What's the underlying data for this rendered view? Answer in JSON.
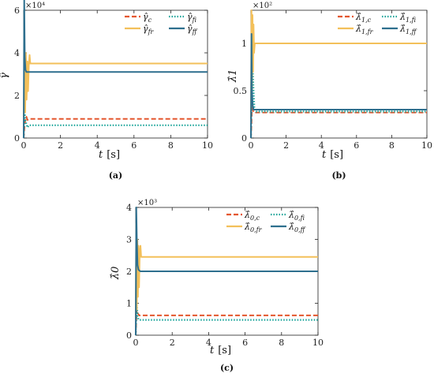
{
  "colors": {
    "c": "#e4572e",
    "fi": "#17a398",
    "fr": "#f3c05a",
    "ff": "#2e6f8e",
    "axis": "#222222"
  },
  "chart_data": [
    {
      "type": "line",
      "caption": "(a)",
      "ylabel": "γ̂",
      "xlabel": "t",
      "xunit": "[s]",
      "multiplier": "×10⁴",
      "xlim": [
        0,
        10
      ],
      "ylim": [
        0,
        6
      ],
      "xticks": [
        "0",
        "2",
        "4",
        "6",
        "8",
        "10"
      ],
      "yticks": [
        "0",
        "2",
        "4",
        "6"
      ],
      "legend_position": "top-right",
      "series": [
        {
          "name": "γ̂c",
          "key": "c",
          "style": "dash",
          "x": [
            0,
            0.05,
            0.1,
            0.15,
            0.2,
            0.3,
            0.4,
            10
          ],
          "y": [
            0,
            0.6,
            0.9,
            1.0,
            0.85,
            0.9,
            0.9,
            0.9
          ]
        },
        {
          "name": "γ̂fi",
          "key": "fi",
          "style": "dot",
          "x": [
            0,
            0.05,
            0.1,
            0.2,
            0.3,
            0.4,
            10
          ],
          "y": [
            0,
            1.2,
            0.8,
            0.5,
            0.6,
            0.6,
            0.6
          ]
        },
        {
          "name": "γ̂fr",
          "key": "fr",
          "style": "solid",
          "x": [
            0,
            0.04,
            0.08,
            0.12,
            0.16,
            0.2,
            0.24,
            0.28,
            0.32,
            0.36,
            0.4,
            10
          ],
          "y": [
            1.0,
            3.8,
            1.2,
            4.0,
            1.8,
            3.6,
            2.2,
            3.4,
            3.9,
            3.5,
            3.5,
            3.5
          ]
        },
        {
          "name": "γ̂ff",
          "key": "ff",
          "style": "solid",
          "x": [
            0,
            0.03,
            0.06,
            0.1,
            0.15,
            0.2,
            0.25,
            0.35,
            10
          ],
          "y": [
            0,
            6.5,
            3.8,
            3.2,
            3.1,
            3.1,
            3.1,
            3.1,
            3.1
          ]
        }
      ],
      "legend": [
        {
          "base": "γ̂",
          "sub": "c",
          "key": "c",
          "style": "dash"
        },
        {
          "base": "γ̂",
          "sub": "fi",
          "key": "fi",
          "style": "dot"
        },
        {
          "base": "γ̂",
          "sub": "fr",
          "key": "fr",
          "style": "solid"
        },
        {
          "base": "γ̂",
          "sub": "ff",
          "key": "ff",
          "style": "solid"
        }
      ]
    },
    {
      "type": "line",
      "caption": "(b)",
      "ylabel": "λ̂1",
      "xlabel": "t",
      "xunit": "[s]",
      "multiplier": "×10²",
      "xlim": [
        0,
        10
      ],
      "ylim": [
        0,
        1.35
      ],
      "xticks": [
        "0",
        "2",
        "4",
        "6",
        "8",
        "10"
      ],
      "yticks": [
        "0",
        "0.5",
        "1"
      ],
      "legend_position": "top-right",
      "series": [
        {
          "name": "λ̂1,c",
          "key": "c",
          "style": "dash",
          "x": [
            0,
            0.03,
            0.06,
            0.1,
            0.15,
            0.2,
            0.3,
            10
          ],
          "y": [
            0,
            0.15,
            0.35,
            0.3,
            0.27,
            0.27,
            0.27,
            0.27
          ]
        },
        {
          "name": "λ̂1,fi",
          "key": "fi",
          "style": "dot",
          "x": [
            0,
            0.05,
            0.1,
            0.15,
            0.2,
            0.3,
            10
          ],
          "y": [
            0,
            0.55,
            0.75,
            0.5,
            0.3,
            0.28,
            0.28
          ]
        },
        {
          "name": "λ̂1,fr",
          "key": "fr",
          "style": "solid",
          "x": [
            0,
            0.03,
            0.06,
            0.09,
            0.12,
            0.15,
            0.18,
            0.22,
            0.3,
            10
          ],
          "y": [
            0.2,
            1.35,
            0.5,
            1.3,
            0.7,
            1.2,
            0.9,
            1.0,
            1.0,
            1.0
          ]
        },
        {
          "name": "λ̂1,ff",
          "key": "ff",
          "style": "solid",
          "x": [
            0,
            0.03,
            0.06,
            0.1,
            0.15,
            0.25,
            10
          ],
          "y": [
            0,
            1.1,
            0.5,
            0.35,
            0.3,
            0.3,
            0.3
          ]
        }
      ],
      "legend": [
        {
          "base": "λ̂",
          "sub": "1,c",
          "key": "c",
          "style": "dash"
        },
        {
          "base": "λ̂",
          "sub": "1,fi",
          "key": "fi",
          "style": "dot"
        },
        {
          "base": "λ̂",
          "sub": "1,fr",
          "key": "fr",
          "style": "solid"
        },
        {
          "base": "λ̂",
          "sub": "1,ff",
          "key": "ff",
          "style": "solid"
        }
      ]
    },
    {
      "type": "line",
      "caption": "(c)",
      "ylabel": "λ̂0",
      "xlabel": "t",
      "xunit": "[s]",
      "multiplier": "×10³",
      "xlim": [
        0,
        10
      ],
      "ylim": [
        0,
        4
      ],
      "xticks": [
        "0",
        "2",
        "4",
        "6",
        "8",
        "10"
      ],
      "yticks": [
        "0",
        "1",
        "2",
        "3",
        "4"
      ],
      "legend_position": "top-right",
      "series": [
        {
          "name": "λ̂0,c",
          "key": "c",
          "style": "dash",
          "x": [
            0,
            0.05,
            0.1,
            0.15,
            0.2,
            0.3,
            10
          ],
          "y": [
            0,
            0.8,
            0.7,
            0.65,
            0.62,
            0.62,
            0.62
          ]
        },
        {
          "name": "λ̂0,fi",
          "key": "fi",
          "style": "dot",
          "x": [
            0,
            0.05,
            0.1,
            0.15,
            0.2,
            0.3,
            10
          ],
          "y": [
            0,
            1.0,
            0.6,
            0.5,
            0.48,
            0.48,
            0.48
          ]
        },
        {
          "name": "λ̂0,fr",
          "key": "fr",
          "style": "solid",
          "x": [
            0,
            0.03,
            0.06,
            0.09,
            0.12,
            0.15,
            0.18,
            0.22,
            0.26,
            0.3,
            10
          ],
          "y": [
            0.5,
            3.5,
            0.8,
            3.0,
            1.2,
            2.8,
            1.5,
            2.6,
            2.8,
            2.45,
            2.45
          ]
        },
        {
          "name": "λ̂0,ff",
          "key": "ff",
          "style": "solid",
          "x": [
            0,
            0.03,
            0.06,
            0.1,
            0.15,
            0.25,
            10
          ],
          "y": [
            0,
            4.0,
            3.0,
            2.2,
            2.05,
            2.0,
            2.0
          ]
        }
      ],
      "legend": [
        {
          "base": "λ̂",
          "sub": "0,c",
          "key": "c",
          "style": "dash"
        },
        {
          "base": "λ̂",
          "sub": "0,fi",
          "key": "fi",
          "style": "dot"
        },
        {
          "base": "λ̂",
          "sub": "0,fr",
          "key": "fr",
          "style": "solid"
        },
        {
          "base": "λ̂",
          "sub": "0,ff",
          "key": "ff",
          "style": "solid"
        }
      ]
    }
  ]
}
